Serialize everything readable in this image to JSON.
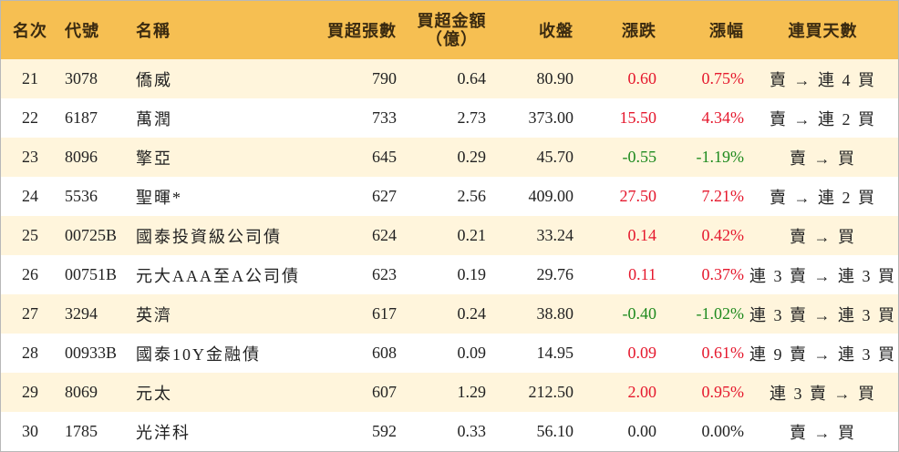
{
  "headers": {
    "rank": "名次",
    "code": "代號",
    "name": "名稱",
    "net_buy_lots": "買超張數",
    "net_buy_amount_line1": "買超金額",
    "net_buy_amount_line2": "（億）",
    "close": "收盤",
    "change": "漲跌",
    "change_pct": "漲幅",
    "consecutive_days": "連買天數"
  },
  "colors": {
    "header_bg": "#f6bf52",
    "row_alt_bg": "#fff5dc",
    "up": "#e5182d",
    "down": "#1e8a1e"
  },
  "rows": [
    {
      "rank": "21",
      "code": "3078",
      "name": "僑威",
      "lots": "790",
      "amount": "0.64",
      "close": "80.90",
      "change": "0.60",
      "pct": "0.75%",
      "days": "賣 → 連 4 買",
      "trend": "up"
    },
    {
      "rank": "22",
      "code": "6187",
      "name": "萬潤",
      "lots": "733",
      "amount": "2.73",
      "close": "373.00",
      "change": "15.50",
      "pct": "4.34%",
      "days": "賣 → 連 2 買",
      "trend": "up"
    },
    {
      "rank": "23",
      "code": "8096",
      "name": "擎亞",
      "lots": "645",
      "amount": "0.29",
      "close": "45.70",
      "change": "-0.55",
      "pct": "-1.19%",
      "days": "賣 → 買",
      "trend": "down"
    },
    {
      "rank": "24",
      "code": "5536",
      "name": "聖暉*",
      "lots": "627",
      "amount": "2.56",
      "close": "409.00",
      "change": "27.50",
      "pct": "7.21%",
      "days": "賣 → 連 2 買",
      "trend": "up"
    },
    {
      "rank": "25",
      "code": "00725B",
      "name": "國泰投資級公司債",
      "lots": "624",
      "amount": "0.21",
      "close": "33.24",
      "change": "0.14",
      "pct": "0.42%",
      "days": "賣 → 買",
      "trend": "up"
    },
    {
      "rank": "26",
      "code": "00751B",
      "name": "元大AAA至A公司債",
      "lots": "623",
      "amount": "0.19",
      "close": "29.76",
      "change": "0.11",
      "pct": "0.37%",
      "days": "連 3 賣 → 連 3 買",
      "trend": "up"
    },
    {
      "rank": "27",
      "code": "3294",
      "name": "英濟",
      "lots": "617",
      "amount": "0.24",
      "close": "38.80",
      "change": "-0.40",
      "pct": "-1.02%",
      "days": "連 3 賣 → 連 3 買",
      "trend": "down"
    },
    {
      "rank": "28",
      "code": "00933B",
      "name": "國泰10Y金融債",
      "lots": "608",
      "amount": "0.09",
      "close": "14.95",
      "change": "0.09",
      "pct": "0.61%",
      "days": "連 9 賣 → 連 3 買",
      "trend": "up"
    },
    {
      "rank": "29",
      "code": "8069",
      "name": "元太",
      "lots": "607",
      "amount": "1.29",
      "close": "212.50",
      "change": "2.00",
      "pct": "0.95%",
      "days": "連 3 賣 → 買",
      "trend": "up"
    },
    {
      "rank": "30",
      "code": "1785",
      "name": "光洋科",
      "lots": "592",
      "amount": "0.33",
      "close": "56.10",
      "change": "0.00",
      "pct": "0.00%",
      "days": "賣 → 買",
      "trend": "flat"
    }
  ]
}
